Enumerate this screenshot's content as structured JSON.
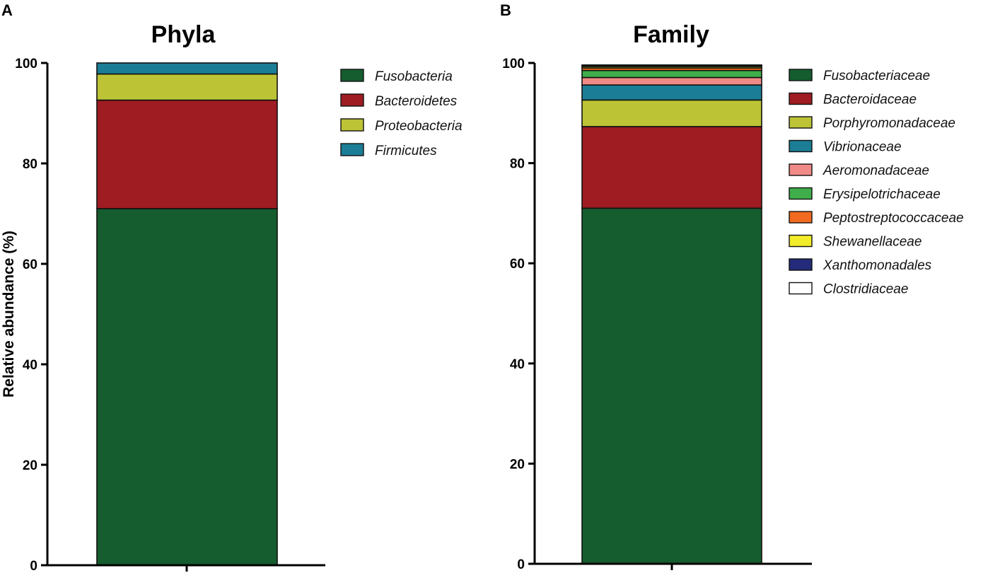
{
  "chart_data": [
    {
      "type": "bar",
      "stacked": true,
      "panel": "A",
      "title": "Phyla",
      "xlabel": "",
      "ylabel": "Relative abundance (%)",
      "ylim": [
        0,
        100
      ],
      "yticks": [
        0,
        20,
        40,
        60,
        80,
        100
      ],
      "categories": [
        ""
      ],
      "legend_position": "right",
      "series": [
        {
          "name": "Fusobacteria",
          "values": [
            71.0
          ],
          "color": "#155c2f"
        },
        {
          "name": "Bacteroidetes",
          "values": [
            21.6
          ],
          "color": "#9e1c22"
        },
        {
          "name": "Proteobacteria",
          "values": [
            5.2
          ],
          "color": "#bcc436"
        },
        {
          "name": "Firmicutes",
          "values": [
            2.2
          ],
          "color": "#1c7d96"
        }
      ]
    },
    {
      "type": "bar",
      "stacked": true,
      "panel": "B",
      "title": "Family",
      "xlabel": "",
      "ylabel": "",
      "ylim": [
        0,
        100
      ],
      "yticks": [
        0,
        20,
        40,
        60,
        80,
        100
      ],
      "categories": [
        ""
      ],
      "legend_position": "right",
      "series": [
        {
          "name": "Fusobacteriaceae",
          "values": [
            71.0
          ],
          "color": "#155c2f"
        },
        {
          "name": "Bacteroidaceae",
          "values": [
            16.3
          ],
          "color": "#9e1c22"
        },
        {
          "name": "Porphyromonadaceae",
          "values": [
            5.3
          ],
          "color": "#bcc436"
        },
        {
          "name": "Vibrionaceae",
          "values": [
            3.0
          ],
          "color": "#1c7d96"
        },
        {
          "name": "Aeromonadaceae",
          "values": [
            1.5
          ],
          "color": "#f08a86"
        },
        {
          "name": "Erysipelotrichaceae",
          "values": [
            1.4
          ],
          "color": "#3fae4a"
        },
        {
          "name": "Peptostreptococcaceae",
          "values": [
            0.5
          ],
          "color": "#f26a1f"
        },
        {
          "name": "Shewanellaceae",
          "values": [
            0.3
          ],
          "color": "#f2ec2a"
        },
        {
          "name": "Xanthomonadales",
          "values": [
            0.2
          ],
          "color": "#232b7a"
        },
        {
          "name": "Clostridiaceae",
          "values": [
            0.1
          ],
          "color": "#ffffff"
        }
      ]
    }
  ]
}
